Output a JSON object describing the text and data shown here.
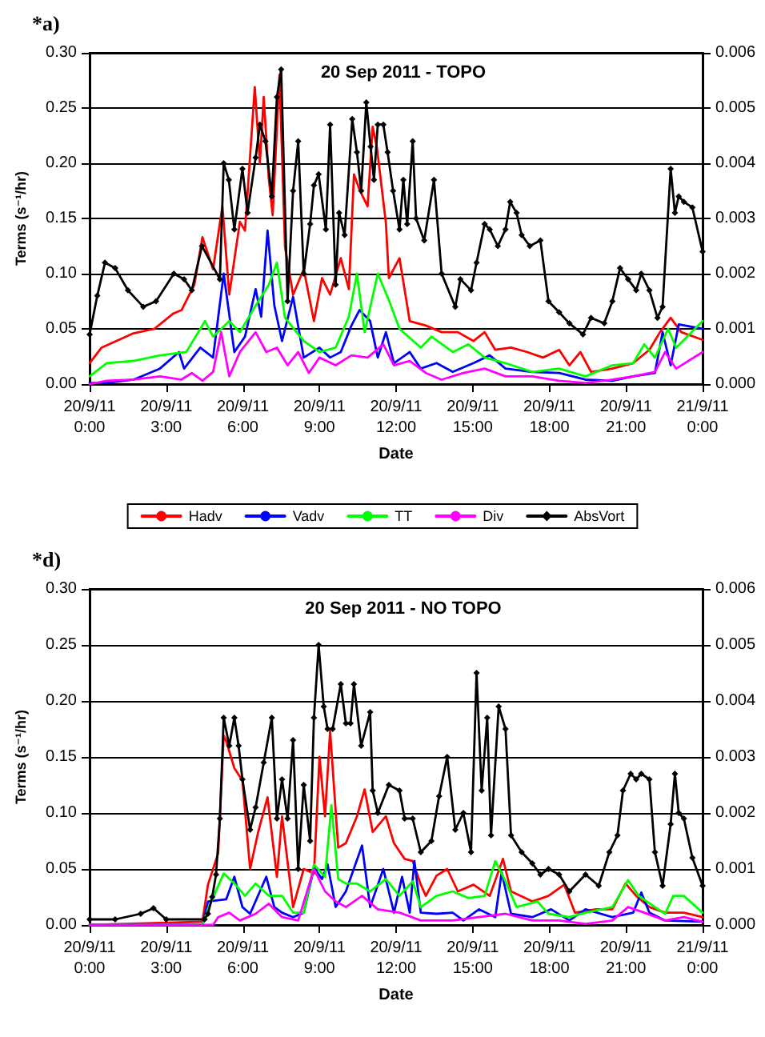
{
  "chart_data": [
    {
      "type": "line",
      "title": "20 Sep 2011 - TOPO",
      "xlabel": "Date",
      "ylabel": "Terms (s⁻¹/hr)",
      "annotations": [
        "*a)"
      ],
      "xlim": [
        "2011-09-20T00:00",
        "2011-09-21T00:00"
      ],
      "xticks": [
        {
          "value": "2011-09-20T00:00",
          "label": "20/9/11\n0:00"
        },
        {
          "value": "2011-09-20T03:00",
          "label": "20/9/11\n3:00"
        },
        {
          "value": "2011-09-20T06:00",
          "label": "20/9/11\n6:00"
        },
        {
          "value": "2011-09-20T09:00",
          "label": "20/9/11\n9:00"
        },
        {
          "value": "2011-09-20T12:00",
          "label": "20/9/11\n12:00"
        },
        {
          "value": "2011-09-20T15:00",
          "label": "20/9/11\n15:00"
        },
        {
          "value": "2011-09-20T18:00",
          "label": "20/9/11\n18:00"
        },
        {
          "value": "2011-09-20T21:00",
          "label": "20/9/11\n21:00"
        },
        {
          "value": "2011-09-21T00:00",
          "label": "21/9/11\n0:00"
        }
      ],
      "ylim": [
        0,
        0.3
      ],
      "yticks": [
        {
          "value": 0,
          "label": "0.00"
        },
        {
          "value": 0.05,
          "label": "0.05"
        },
        {
          "value": 0.1,
          "label": "0.10"
        },
        {
          "value": 0.15,
          "label": "0.15"
        },
        {
          "value": 0.2,
          "label": "0.20"
        },
        {
          "value": 0.25,
          "label": "0.25"
        },
        {
          "value": 0.3,
          "label": "0.30"
        }
      ],
      "y2lim": [
        0,
        0.006
      ],
      "y2ticks": [
        {
          "value": 0,
          "label": "0.000"
        },
        {
          "value": 0.001,
          "label": "0.001"
        },
        {
          "value": 0.002,
          "label": "0.002"
        },
        {
          "value": 0.003,
          "label": "0.003"
        },
        {
          "value": 0.004,
          "label": "0.004"
        },
        {
          "value": 0.005,
          "label": "0.005"
        },
        {
          "value": 0.006,
          "label": "0.006"
        }
      ],
      "grid": "y",
      "legend": "bottom",
      "line_style": "solid",
      "marker": "none",
      "series": [
        {
          "name": "Hadv",
          "color": "#ff0000",
          "x": [
            "2011-09-20T00:00",
            "2011-09-20T00:28",
            "2011-09-20T01:43",
            "2011-09-20T02:32",
            "2011-09-20T03:17",
            "2011-09-20T03:36",
            "2011-09-20T04:06",
            "2011-09-20T04:25",
            "2011-09-20T04:50",
            "2011-09-20T05:12",
            "2011-09-20T05:28",
            "2011-09-20T05:53",
            "2011-09-20T06:05",
            "2011-09-20T06:28",
            "2011-09-20T06:40",
            "2011-09-20T06:49",
            "2011-09-20T07:01",
            "2011-09-20T07:10",
            "2011-09-20T07:26",
            "2011-09-20T07:39",
            "2011-09-20T07:58",
            "2011-09-20T08:23",
            "2011-09-20T08:47",
            "2011-09-20T09:06",
            "2011-09-20T09:25",
            "2011-09-20T09:50",
            "2011-09-20T10:09",
            "2011-09-20T10:21",
            "2011-09-20T10:34",
            "2011-09-20T10:53",
            "2011-09-20T11:05",
            "2011-09-20T11:15",
            "2011-09-20T11:36",
            "2011-09-20T11:43",
            "2011-09-20T12:08",
            "2011-09-20T12:32",
            "2011-09-20T13:10",
            "2011-09-20T13:47",
            "2011-09-20T14:25",
            "2011-09-20T15:02",
            "2011-09-20T15:28",
            "2011-09-20T15:53",
            "2011-09-20T16:30",
            "2011-09-20T17:08",
            "2011-09-20T17:45",
            "2011-09-20T18:23",
            "2011-09-20T18:47",
            "2011-09-20T19:13",
            "2011-09-20T19:38",
            "2011-09-20T20:28",
            "2011-09-20T21:17",
            "2011-09-20T21:55",
            "2011-09-20T22:20",
            "2011-09-20T22:45",
            "2011-09-20T23:10",
            "2011-09-21T00:00"
          ],
          "values": [
            0.019,
            0.033,
            0.046,
            0.05,
            0.064,
            0.067,
            0.09,
            0.133,
            0.104,
            0.161,
            0.081,
            0.147,
            0.139,
            0.269,
            0.2,
            0.26,
            0.186,
            0.153,
            0.28,
            0.124,
            0.081,
            0.104,
            0.057,
            0.096,
            0.081,
            0.114,
            0.086,
            0.19,
            0.176,
            0.161,
            0.233,
            0.214,
            0.146,
            0.096,
            0.114,
            0.057,
            0.053,
            0.047,
            0.047,
            0.039,
            0.047,
            0.031,
            0.033,
            0.029,
            0.024,
            0.031,
            0.017,
            0.029,
            0.011,
            0.014,
            0.019,
            0.031,
            0.047,
            0.06,
            0.047,
            0.04
          ]
        },
        {
          "name": "Vadv",
          "color": "#0000ff",
          "x": [
            "2011-09-20T00:00",
            "2011-09-20T00:40",
            "2011-09-20T01:43",
            "2011-09-20T02:45",
            "2011-09-20T03:30",
            "2011-09-20T03:42",
            "2011-09-20T04:20",
            "2011-09-20T04:50",
            "2011-09-20T05:15",
            "2011-09-20T05:40",
            "2011-09-20T06:05",
            "2011-09-20T06:30",
            "2011-09-20T06:43",
            "2011-09-20T06:58",
            "2011-09-20T07:14",
            "2011-09-20T07:32",
            "2011-09-20T07:58",
            "2011-09-20T08:23",
            "2011-09-20T09:00",
            "2011-09-20T09:25",
            "2011-09-20T09:50",
            "2011-09-20T10:15",
            "2011-09-20T10:34",
            "2011-09-20T10:59",
            "2011-09-20T11:17",
            "2011-09-20T11:36",
            "2011-09-20T11:55",
            "2011-09-20T12:32",
            "2011-09-20T12:58",
            "2011-09-20T13:35",
            "2011-09-20T14:13",
            "2011-09-20T15:02",
            "2011-09-20T15:40",
            "2011-09-20T16:17",
            "2011-09-20T17:20",
            "2011-09-20T18:23",
            "2011-09-20T19:25",
            "2011-09-20T20:28",
            "2011-09-20T21:17",
            "2011-09-20T22:08",
            "2011-09-20T22:26",
            "2011-09-20T22:45",
            "2011-09-20T23:04",
            "2011-09-21T00:00"
          ],
          "values": [
            0.001,
            0.001,
            0.004,
            0.014,
            0.029,
            0.014,
            0.033,
            0.024,
            0.1,
            0.029,
            0.043,
            0.086,
            0.061,
            0.139,
            0.071,
            0.039,
            0.079,
            0.024,
            0.033,
            0.024,
            0.029,
            0.053,
            0.067,
            0.057,
            0.024,
            0.047,
            0.019,
            0.029,
            0.014,
            0.019,
            0.011,
            0.019,
            0.026,
            0.014,
            0.011,
            0.01,
            0.004,
            0.003,
            0.007,
            0.01,
            0.047,
            0.017,
            0.054,
            0.05
          ]
        },
        {
          "name": "TT",
          "color": "#00ff00",
          "x": [
            "2011-09-20T00:00",
            "2011-09-20T00:40",
            "2011-09-20T01:43",
            "2011-09-20T02:45",
            "2011-09-20T03:47",
            "2011-09-20T04:31",
            "2011-09-20T04:50",
            "2011-09-20T05:28",
            "2011-09-20T05:53",
            "2011-09-20T06:30",
            "2011-09-20T07:01",
            "2011-09-20T07:20",
            "2011-09-20T07:39",
            "2011-09-20T08:23",
            "2011-09-20T09:00",
            "2011-09-20T09:38",
            "2011-09-20T10:09",
            "2011-09-20T10:28",
            "2011-09-20T10:46",
            "2011-09-20T11:17",
            "2011-09-20T11:43",
            "2011-09-20T12:08",
            "2011-09-20T12:58",
            "2011-09-20T13:23",
            "2011-09-20T14:13",
            "2011-09-20T14:50",
            "2011-09-20T15:28",
            "2011-09-20T16:17",
            "2011-09-20T17:20",
            "2011-09-20T18:23",
            "2011-09-20T19:25",
            "2011-09-20T20:28",
            "2011-09-20T21:17",
            "2011-09-20T21:43",
            "2011-09-20T22:08",
            "2011-09-20T22:39",
            "2011-09-20T22:58",
            "2011-09-21T00:00"
          ],
          "values": [
            0.007,
            0.019,
            0.021,
            0.026,
            0.029,
            0.057,
            0.043,
            0.057,
            0.047,
            0.071,
            0.09,
            0.11,
            0.06,
            0.039,
            0.029,
            0.033,
            0.061,
            0.1,
            0.047,
            0.1,
            0.076,
            0.05,
            0.033,
            0.043,
            0.029,
            0.036,
            0.024,
            0.019,
            0.011,
            0.014,
            0.007,
            0.017,
            0.019,
            0.036,
            0.024,
            0.05,
            0.033,
            0.057
          ]
        },
        {
          "name": "Div",
          "color": "#ff00ff",
          "x": [
            "2011-09-20T00:00",
            "2011-09-20T00:40",
            "2011-09-20T01:43",
            "2011-09-20T02:45",
            "2011-09-20T03:35",
            "2011-09-20T04:00",
            "2011-09-20T04:25",
            "2011-09-20T04:50",
            "2011-09-20T05:09",
            "2011-09-20T05:28",
            "2011-09-20T05:53",
            "2011-09-20T06:30",
            "2011-09-20T06:55",
            "2011-09-20T07:20",
            "2011-09-20T07:45",
            "2011-09-20T08:10",
            "2011-09-20T08:35",
            "2011-09-20T09:00",
            "2011-09-20T09:38",
            "2011-09-20T10:15",
            "2011-09-20T10:53",
            "2011-09-20T11:30",
            "2011-09-20T11:55",
            "2011-09-20T12:32",
            "2011-09-20T13:10",
            "2011-09-20T13:47",
            "2011-09-20T14:38",
            "2011-09-20T15:28",
            "2011-09-20T16:17",
            "2011-09-20T17:20",
            "2011-09-20T18:23",
            "2011-09-20T19:25",
            "2011-09-20T20:28",
            "2011-09-20T21:17",
            "2011-09-20T22:08",
            "2011-09-20T22:32",
            "2011-09-20T22:58",
            "2011-09-21T00:00"
          ],
          "values": [
            0,
            0.003,
            0.004,
            0.007,
            0.004,
            0.01,
            0.003,
            0.011,
            0.047,
            0.007,
            0.029,
            0.047,
            0.029,
            0.033,
            0.017,
            0.029,
            0.01,
            0.024,
            0.017,
            0.026,
            0.024,
            0.036,
            0.017,
            0.021,
            0.01,
            0.004,
            0.01,
            0.014,
            0.007,
            0.007,
            0.003,
            0.001,
            0.004,
            0.007,
            0.011,
            0.029,
            0.014,
            0.029
          ]
        },
        {
          "name": "AbsVort",
          "color": "#000000",
          "axis": "y2",
          "marker": "diamond",
          "x": [
            "2011-09-20T00:00",
            "2011-09-20T00:18",
            "2011-09-20T00:36",
            "2011-09-20T01:00",
            "2011-09-20T01:30",
            "2011-09-20T02:06",
            "2011-09-20T02:36",
            "2011-09-20T03:18",
            "2011-09-20T03:42",
            "2011-09-20T04:00",
            "2011-09-20T04:24",
            "2011-09-20T05:06",
            "2011-09-20T05:15",
            "2011-09-20T05:27",
            "2011-09-20T05:40",
            "2011-09-20T05:59",
            "2011-09-20T06:11",
            "2011-09-20T06:30",
            "2011-09-20T06:40",
            "2011-09-20T06:53",
            "2011-09-20T07:08",
            "2011-09-20T07:20",
            "2011-09-20T07:30",
            "2011-09-20T07:45",
            "2011-09-20T07:58",
            "2011-09-20T08:10",
            "2011-09-20T08:23",
            "2011-09-20T08:38",
            "2011-09-20T08:47",
            "2011-09-20T08:58",
            "2011-09-20T09:15",
            "2011-09-20T09:25",
            "2011-09-20T09:38",
            "2011-09-20T09:46",
            "2011-09-20T09:59",
            "2011-09-20T10:17",
            "2011-09-20T10:28",
            "2011-09-20T10:38",
            "2011-09-20T10:50",
            "2011-09-20T11:00",
            "2011-09-20T11:08",
            "2011-09-20T11:17",
            "2011-09-20T11:30",
            "2011-09-20T11:40",
            "2011-09-20T11:53",
            "2011-09-20T12:08",
            "2011-09-20T12:17",
            "2011-09-20T12:26",
            "2011-09-20T12:39",
            "2011-09-20T12:47",
            "2011-09-20T13:06",
            "2011-09-20T13:29",
            "2011-09-20T13:47",
            "2011-09-20T14:19",
            "2011-09-20T14:31",
            "2011-09-20T14:56",
            "2011-09-20T15:09",
            "2011-09-20T15:28",
            "2011-09-20T15:40",
            "2011-09-20T15:59",
            "2011-09-20T16:17",
            "2011-09-20T16:28",
            "2011-09-20T16:43",
            "2011-09-20T16:55",
            "2011-09-20T17:14",
            "2011-09-20T17:39",
            "2011-09-20T17:58",
            "2011-09-20T18:23",
            "2011-09-20T18:47",
            "2011-09-20T19:19",
            "2011-09-20T19:38",
            "2011-09-20T20:09",
            "2011-09-20T20:28",
            "2011-09-20T20:46",
            "2011-09-20T21:05",
            "2011-09-20T21:24",
            "2011-09-20T21:36",
            "2011-09-20T21:55",
            "2011-09-20T22:14",
            "2011-09-20T22:26",
            "2011-09-20T22:45",
            "2011-09-20T22:55",
            "2011-09-20T23:04",
            "2011-09-20T23:16",
            "2011-09-20T23:36",
            "2011-09-21T00:00"
          ],
          "values": [
            0.0009,
            0.0016,
            0.0022,
            0.0021,
            0.0017,
            0.0014,
            0.0015,
            0.002,
            0.0019,
            0.0017,
            0.0025,
            0.0019,
            0.004,
            0.0037,
            0.0028,
            0.0039,
            0.0031,
            0.0041,
            0.0047,
            0.0044,
            0.0034,
            0.0052,
            0.0057,
            0.0015,
            0.0035,
            0.0044,
            0.002,
            0.0029,
            0.0036,
            0.0038,
            0.0028,
            0.0047,
            0.0018,
            0.0031,
            0.0027,
            0.0048,
            0.0042,
            0.0035,
            0.0051,
            0.0043,
            0.0037,
            0.0047,
            0.0047,
            0.0042,
            0.0035,
            0.0028,
            0.0037,
            0.0029,
            0.0044,
            0.003,
            0.0026,
            0.0037,
            0.002,
            0.0014,
            0.0019,
            0.0017,
            0.0022,
            0.0029,
            0.0028,
            0.0025,
            0.0028,
            0.0033,
            0.0031,
            0.0027,
            0.0025,
            0.0026,
            0.0015,
            0.0013,
            0.0011,
            0.0009,
            0.0012,
            0.0011,
            0.0015,
            0.0021,
            0.0019,
            0.0017,
            0.002,
            0.0017,
            0.0012,
            0.0014,
            0.0039,
            0.0031,
            0.0034,
            0.0033,
            0.0032,
            0.0024
          ]
        }
      ]
    },
    {
      "type": "line",
      "title": "20 Sep 2011 - NO TOPO",
      "xlabel": "Date",
      "ylabel": "Terms (s⁻¹/hr)",
      "annotations": [
        "*d)"
      ],
      "xlim": [
        "2011-09-20T00:00",
        "2011-09-21T00:00"
      ],
      "xticks": [
        {
          "value": "2011-09-20T00:00",
          "label": "20/9/11\n0:00"
        },
        {
          "value": "2011-09-20T03:00",
          "label": "20/9/11\n3:00"
        },
        {
          "value": "2011-09-20T06:00",
          "label": "20/9/11\n6:00"
        },
        {
          "value": "2011-09-20T09:00",
          "label": "20/9/11\n9:00"
        },
        {
          "value": "2011-09-20T12:00",
          "label": "20/9/11\n12:00"
        },
        {
          "value": "2011-09-20T15:00",
          "label": "20/9/11\n15:00"
        },
        {
          "value": "2011-09-20T18:00",
          "label": "20/9/11\n18:00"
        },
        {
          "value": "2011-09-20T21:00",
          "label": "20/9/11\n21:00"
        },
        {
          "value": "2011-09-21T00:00",
          "label": "21/9/11\n0:00"
        }
      ],
      "ylim": [
        0,
        0.3
      ],
      "yticks": [
        {
          "value": 0,
          "label": "0.00"
        },
        {
          "value": 0.05,
          "label": "0.05"
        },
        {
          "value": 0.1,
          "label": "0.10"
        },
        {
          "value": 0.15,
          "label": "0.15"
        },
        {
          "value": 0.2,
          "label": "0.20"
        },
        {
          "value": 0.25,
          "label": "0.25"
        },
        {
          "value": 0.3,
          "label": "0.30"
        }
      ],
      "y2lim": [
        0,
        0.006
      ],
      "y2ticks": [
        {
          "value": 0,
          "label": "0.000"
        },
        {
          "value": 0.001,
          "label": "0.001"
        },
        {
          "value": 0.002,
          "label": "0.002"
        },
        {
          "value": 0.003,
          "label": "0.003"
        },
        {
          "value": 0.004,
          "label": "0.004"
        },
        {
          "value": 0.005,
          "label": "0.005"
        },
        {
          "value": 0.006,
          "label": "0.006"
        }
      ],
      "grid": "y",
      "line_style": "solid",
      "marker": "none",
      "series": [
        {
          "color": "#ff0000",
          "x": [
            "2011-09-20T00:00",
            "2011-09-20T04:25",
            "2011-09-20T04:38",
            "2011-09-20T05:02",
            "2011-09-20T05:15",
            "2011-09-20T05:21",
            "2011-09-20T05:40",
            "2011-09-20T05:59",
            "2011-09-20T06:17",
            "2011-09-20T06:36",
            "2011-09-20T06:58",
            "2011-09-20T07:20",
            "2011-09-20T07:32",
            "2011-09-20T07:58",
            "2011-09-20T08:23",
            "2011-09-20T08:47",
            "2011-09-20T09:00",
            "2011-09-20T09:13",
            "2011-09-20T09:25",
            "2011-09-20T09:44",
            "2011-09-20T10:02",
            "2011-09-20T10:28",
            "2011-09-20T10:46",
            "2011-09-20T11:05",
            "2011-09-20T11:36",
            "2011-09-20T11:55",
            "2011-09-20T12:20",
            "2011-09-20T12:39",
            "2011-09-20T12:58",
            "2011-09-20T13:10",
            "2011-09-20T13:35",
            "2011-09-20T14:00",
            "2011-09-20T14:25",
            "2011-09-20T15:02",
            "2011-09-20T15:40",
            "2011-09-20T16:11",
            "2011-09-20T16:30",
            "2011-09-20T17:20",
            "2011-09-20T17:58",
            "2011-09-20T18:35",
            "2011-09-20T19:00",
            "2011-09-20T19:50",
            "2011-09-20T20:28",
            "2011-09-20T20:59",
            "2011-09-20T21:24",
            "2011-09-20T21:55",
            "2011-09-20T22:32",
            "2011-09-20T23:16",
            "2011-09-21T00:00"
          ],
          "values": [
            0,
            0.003,
            0.036,
            0.064,
            0.169,
            0.164,
            0.14,
            0.129,
            0.05,
            0.083,
            0.114,
            0.043,
            0.097,
            0.016,
            0.05,
            0.046,
            0.15,
            0.097,
            0.173,
            0.069,
            0.073,
            0.097,
            0.121,
            0.083,
            0.097,
            0.073,
            0.059,
            0.057,
            0.036,
            0.026,
            0.044,
            0.05,
            0.03,
            0.036,
            0.026,
            0.059,
            0.03,
            0.021,
            0.026,
            0.036,
            0.011,
            0.014,
            0.014,
            0.037,
            0.026,
            0.016,
            0.011,
            0.011,
            0.007
          ]
        },
        {
          "color": "#0000ff",
          "x": [
            "2011-09-20T00:00",
            "2011-09-20T04:25",
            "2011-09-20T04:38",
            "2011-09-20T05:21",
            "2011-09-20T05:40",
            "2011-09-20T05:59",
            "2011-09-20T06:17",
            "2011-09-20T06:55",
            "2011-09-20T07:14",
            "2011-09-20T07:32",
            "2011-09-20T07:58",
            "2011-09-20T08:23",
            "2011-09-20T08:47",
            "2011-09-20T09:06",
            "2011-09-20T09:19",
            "2011-09-20T09:38",
            "2011-09-20T10:02",
            "2011-09-20T10:40",
            "2011-09-20T10:59",
            "2011-09-20T11:30",
            "2011-09-20T11:55",
            "2011-09-20T12:14",
            "2011-09-20T12:32",
            "2011-09-20T12:43",
            "2011-09-20T12:58",
            "2011-09-20T13:35",
            "2011-09-20T14:13",
            "2011-09-20T14:38",
            "2011-09-20T15:15",
            "2011-09-20T15:53",
            "2011-09-20T16:08",
            "2011-09-20T16:30",
            "2011-09-20T17:20",
            "2011-09-20T18:04",
            "2011-09-20T18:47",
            "2011-09-20T19:25",
            "2011-09-20T20:28",
            "2011-09-20T21:17",
            "2011-09-20T21:36",
            "2011-09-20T21:55",
            "2011-09-20T22:32",
            "2011-09-21T00:00"
          ],
          "values": [
            0,
            0,
            0.021,
            0.023,
            0.043,
            0.016,
            0.01,
            0.043,
            0.016,
            0.011,
            0.007,
            0.011,
            0.051,
            0.041,
            0.054,
            0.016,
            0.03,
            0.071,
            0.016,
            0.05,
            0.011,
            0.043,
            0.011,
            0.057,
            0.011,
            0.01,
            0.011,
            0.004,
            0.014,
            0.007,
            0.047,
            0.01,
            0.007,
            0.014,
            0.004,
            0.014,
            0.007,
            0.011,
            0.029,
            0.011,
            0.004,
            0.003
          ]
        },
        {
          "color": "#00ff00",
          "x": [
            "2011-09-20T00:00",
            "2011-09-20T04:25",
            "2011-09-20T04:38",
            "2011-09-20T05:15",
            "2011-09-20T05:40",
            "2011-09-20T06:05",
            "2011-09-20T06:30",
            "2011-09-20T07:01",
            "2011-09-20T07:32",
            "2011-09-20T07:58",
            "2011-09-20T08:23",
            "2011-09-20T08:47",
            "2011-09-20T09:13",
            "2011-09-20T09:28",
            "2011-09-20T09:44",
            "2011-09-20T10:02",
            "2011-09-20T10:28",
            "2011-09-20T10:59",
            "2011-09-20T11:36",
            "2011-09-20T12:08",
            "2011-09-20T12:39",
            "2011-09-20T12:58",
            "2011-09-20T13:35",
            "2011-09-20T14:13",
            "2011-09-20T14:50",
            "2011-09-20T15:28",
            "2011-09-20T15:53",
            "2011-09-20T16:17",
            "2011-09-20T16:43",
            "2011-09-20T17:32",
            "2011-09-20T17:58",
            "2011-09-20T18:47",
            "2011-09-20T19:25",
            "2011-09-20T20:28",
            "2011-09-20T21:05",
            "2011-09-20T21:30",
            "2011-09-20T22:08",
            "2011-09-20T22:32",
            "2011-09-20T22:51",
            "2011-09-20T23:16",
            "2011-09-21T00:00"
          ],
          "values": [
            0,
            0,
            0.014,
            0.046,
            0.037,
            0.026,
            0.037,
            0.026,
            0.026,
            0.011,
            0.011,
            0.054,
            0.043,
            0.107,
            0.041,
            0.037,
            0.037,
            0.03,
            0.041,
            0.026,
            0.039,
            0.016,
            0.026,
            0.03,
            0.024,
            0.026,
            0.057,
            0.039,
            0.016,
            0.021,
            0.01,
            0.007,
            0.011,
            0.016,
            0.04,
            0.026,
            0.016,
            0.01,
            0.026,
            0.026,
            0.011
          ]
        },
        {
          "color": "#ff00ff",
          "x": [
            "2011-09-20T00:00",
            "2011-09-20T04:50",
            "2011-09-20T05:02",
            "2011-09-20T05:28",
            "2011-09-20T05:53",
            "2011-09-20T06:30",
            "2011-09-20T07:01",
            "2011-09-20T07:32",
            "2011-09-20T08:10",
            "2011-09-20T08:47",
            "2011-09-20T09:13",
            "2011-09-20T09:38",
            "2011-09-20T10:02",
            "2011-09-20T10:40",
            "2011-09-20T11:17",
            "2011-09-20T12:08",
            "2011-09-20T12:58",
            "2011-09-20T14:13",
            "2011-09-20T15:15",
            "2011-09-20T16:17",
            "2011-09-20T17:20",
            "2011-09-20T18:23",
            "2011-09-20T19:25",
            "2011-09-20T20:28",
            "2011-09-20T21:05",
            "2011-09-20T21:43",
            "2011-09-20T22:32",
            "2011-09-20T23:16",
            "2011-09-21T00:00"
          ],
          "values": [
            0,
            0,
            0.007,
            0.011,
            0.004,
            0.01,
            0.019,
            0.007,
            0.004,
            0.05,
            0.03,
            0.021,
            0.016,
            0.026,
            0.014,
            0.011,
            0.004,
            0.004,
            0.007,
            0.01,
            0.004,
            0.004,
            0.001,
            0.004,
            0.016,
            0.011,
            0.004,
            0.007,
            0.003
          ]
        },
        {
          "color": "#000000",
          "axis": "y2",
          "marker": "diamond",
          "x": [
            "2011-09-20T00:00",
            "2011-09-20T01:00",
            "2011-09-20T02:00",
            "2011-09-20T02:30",
            "2011-09-20T03:00",
            "2011-09-20T04:30",
            "2011-09-20T04:38",
            "2011-09-20T04:48",
            "2011-09-20T04:57",
            "2011-09-20T05:06",
            "2011-09-20T05:15",
            "2011-09-20T05:28",
            "2011-09-20T05:40",
            "2011-09-20T05:50",
            "2011-09-20T05:59",
            "2011-09-20T06:17",
            "2011-09-20T06:30",
            "2011-09-20T06:49",
            "2011-09-20T07:08",
            "2011-09-20T07:20",
            "2011-09-20T07:32",
            "2011-09-20T07:45",
            "2011-09-20T07:58",
            "2011-09-20T08:10",
            "2011-09-20T08:23",
            "2011-09-20T08:38",
            "2011-09-20T08:47",
            "2011-09-20T08:58",
            "2011-09-20T09:10",
            "2011-09-20T09:19",
            "2011-09-20T09:31",
            "2011-09-20T09:50",
            "2011-09-20T10:02",
            "2011-09-20T10:13",
            "2011-09-20T10:21",
            "2011-09-20T10:38",
            "2011-09-20T10:59",
            "2011-09-20T11:05",
            "2011-09-20T11:17",
            "2011-09-20T11:43",
            "2011-09-20T12:08",
            "2011-09-20T12:20",
            "2011-09-20T12:39",
            "2011-09-20T12:58",
            "2011-09-20T13:23",
            "2011-09-20T13:41",
            "2011-09-20T14:00",
            "2011-09-20T14:19",
            "2011-09-20T14:38",
            "2011-09-20T14:56",
            "2011-09-20T15:09",
            "2011-09-20T15:21",
            "2011-09-20T15:34",
            "2011-09-20T15:43",
            "2011-09-20T16:01",
            "2011-09-20T16:17",
            "2011-09-20T16:30",
            "2011-09-20T16:55",
            "2011-09-20T17:20",
            "2011-09-20T17:39",
            "2011-09-20T17:58",
            "2011-09-20T18:23",
            "2011-09-20T18:47",
            "2011-09-20T19:25",
            "2011-09-20T19:56",
            "2011-09-20T20:21",
            "2011-09-20T20:40",
            "2011-09-20T20:53",
            "2011-09-20T21:11",
            "2011-09-20T21:24",
            "2011-09-20T21:36",
            "2011-09-20T21:55",
            "2011-09-20T22:08",
            "2011-09-20T22:26",
            "2011-09-20T22:45",
            "2011-09-20T22:55",
            "2011-09-20T23:04",
            "2011-09-20T23:16",
            "2011-09-20T23:36",
            "2011-09-21T00:00"
          ],
          "values": [
            0.0001,
            0.0001,
            0.0002,
            0.0003,
            0.0001,
            0.0001,
            0.0002,
            0.0005,
            0.0009,
            0.0019,
            0.0037,
            0.0032,
            0.0037,
            0.0032,
            0.0026,
            0.0017,
            0.0021,
            0.0029,
            0.0037,
            0.0019,
            0.0026,
            0.0019,
            0.0033,
            0.001,
            0.0025,
            0.0015,
            0.0037,
            0.005,
            0.0039,
            0.0035,
            0.0035,
            0.0043,
            0.0036,
            0.0036,
            0.0043,
            0.0032,
            0.0038,
            0.0024,
            0.002,
            0.0025,
            0.0024,
            0.0019,
            0.0019,
            0.0013,
            0.0015,
            0.0023,
            0.003,
            0.0017,
            0.002,
            0.0013,
            0.0045,
            0.0024,
            0.0037,
            0.0016,
            0.0039,
            0.0035,
            0.0016,
            0.0013,
            0.0011,
            0.0009,
            0.001,
            0.0009,
            0.0006,
            0.0009,
            0.0007,
            0.0013,
            0.0016,
            0.0024,
            0.0027,
            0.0026,
            0.0027,
            0.0026,
            0.0013,
            0.0007,
            0.0018,
            0.0027,
            0.002,
            0.0019,
            0.0012,
            0.0007
          ]
        }
      ]
    }
  ]
}
